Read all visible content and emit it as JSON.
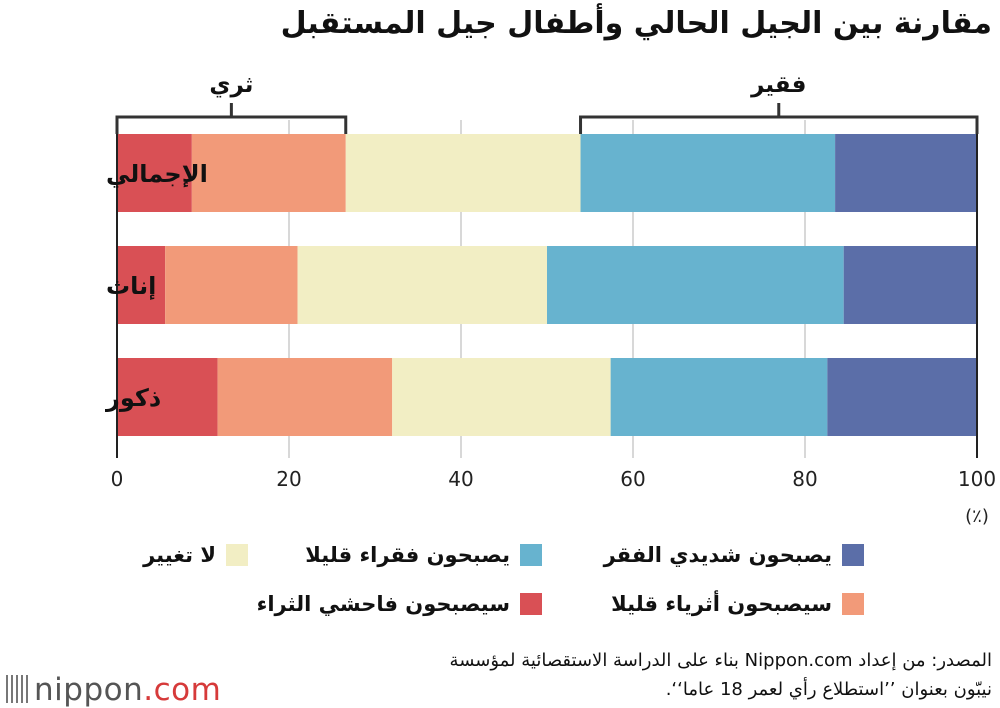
{
  "title": "مقارنة بين الجيل الحالي وأطفال جيل المستقبل",
  "colors": {
    "very_poor": "#5b6ea8",
    "bit_poor": "#67b3cf",
    "no_change": "#f2eec4",
    "bit_rich": "#f29a79",
    "very_rich": "#d95055",
    "grid": "#cccccc",
    "axis": "#222222"
  },
  "chart_data": {
    "type": "bar",
    "orientation": "horizontal",
    "stacked": true,
    "categories": [
      "الإجمالي",
      "إناث",
      "ذكور"
    ],
    "series": [
      {
        "key": "very_rich",
        "name": "سيصبحون فاحشي الثراء",
        "values": [
          8.7,
          5.6,
          11.7
        ]
      },
      {
        "key": "bit_rich",
        "name": "سيصبحون أثرياء قليلا",
        "values": [
          17.9,
          15.4,
          20.3
        ]
      },
      {
        "key": "no_change",
        "name": "لا تغيير",
        "values": [
          27.3,
          29.0,
          25.4
        ]
      },
      {
        "key": "bit_poor",
        "name": "يصبحون فقراء قليلا",
        "values": [
          29.6,
          34.5,
          25.2
        ]
      },
      {
        "key": "very_poor",
        "name": "يصبحون شديدي الفقر",
        "values": [
          16.5,
          15.5,
          17.4
        ]
      }
    ],
    "xlim": [
      0,
      100
    ],
    "xticks": [
      "0",
      "20",
      "40",
      "60",
      "80",
      "100"
    ],
    "unit": "(٪)",
    "grid": true,
    "brackets": [
      {
        "label": "ثري",
        "from": 0,
        "to": 26.6
      },
      {
        "label": "فقير",
        "from": 53.9,
        "to": 100
      }
    ]
  },
  "legend": [
    {
      "key": "very_poor",
      "label": "يصبحون شديدي الفقر"
    },
    {
      "key": "bit_poor",
      "label": "يصبحون فقراء قليلا"
    },
    {
      "key": "no_change",
      "label": "لا تغيير"
    },
    {
      "key": "bit_rich",
      "label": "سيصبحون أثرياء قليلا"
    },
    {
      "key": "very_rich",
      "label": "سيصبحون فاحشي الثراء"
    }
  ],
  "source": {
    "line1": "المصدر: من إعداد Nippon.com بناء على الدراسة الاستقصائية لمؤسسة",
    "line2": "نيبّون بعنوان ’’استطلاع رأي لعمر 18 عاما‘‘."
  },
  "logo": {
    "name": "nippon",
    "suffix": ".com"
  }
}
